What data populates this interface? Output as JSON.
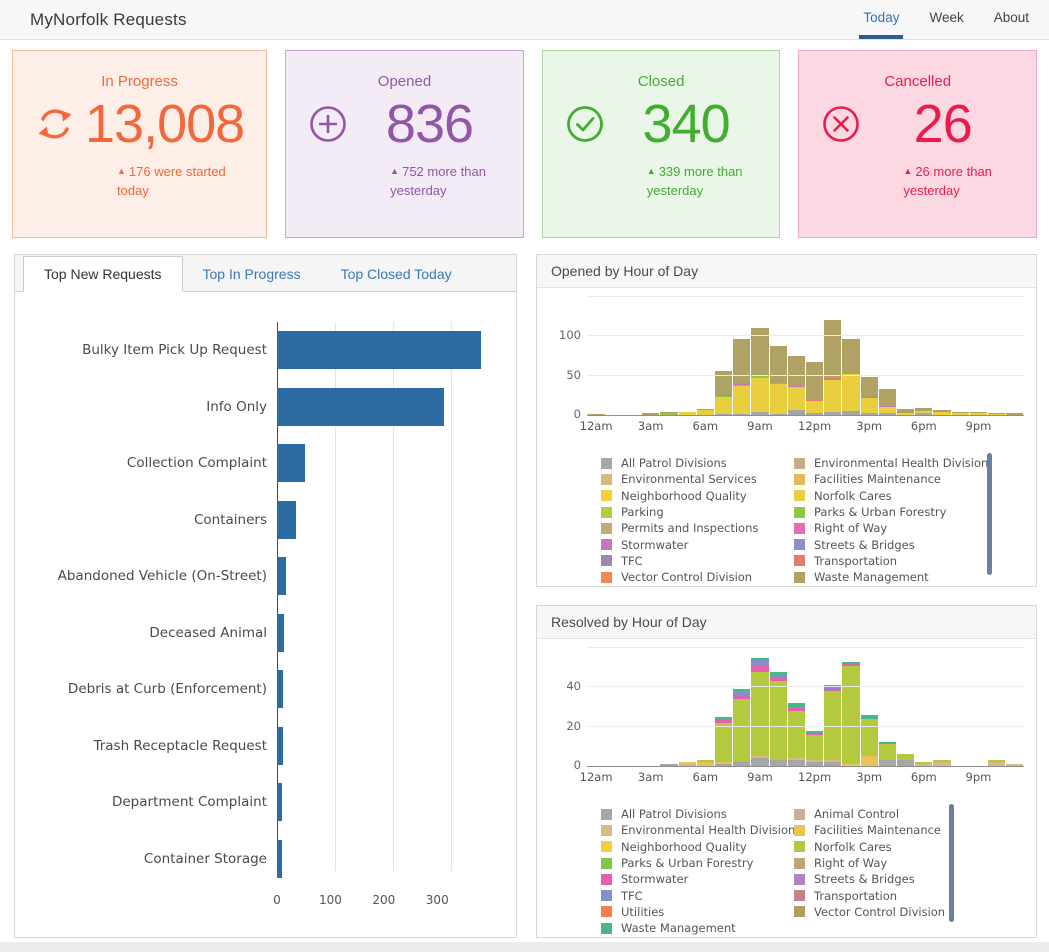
{
  "header": {
    "title": "MyNorfolk Requests",
    "nav": [
      {
        "label": "Today",
        "active": true
      },
      {
        "label": "Week",
        "active": false
      },
      {
        "label": "About",
        "active": false
      }
    ]
  },
  "cards": [
    {
      "title": "In Progress",
      "value": "13,008",
      "note_lines": [
        "176 were started today",
        ""
      ],
      "icon": "refresh-icon",
      "color": "#f2683c",
      "bg": "#fdeee7",
      "border": "#f6b89c"
    },
    {
      "title": "Opened",
      "value": "836",
      "note_lines": [
        "752 more than",
        "yesterday"
      ],
      "icon": "plus-circle-icon",
      "color": "#9355a8",
      "bg": "#f3ecf7",
      "border": "#cba3d8"
    },
    {
      "title": "Closed",
      "value": "340",
      "note_lines": [
        "339 more than",
        "yesterday"
      ],
      "icon": "check-circle-icon",
      "color": "#41ae2f",
      "bg": "#eaf6e7",
      "border": "#abd9a2"
    },
    {
      "title": "Cancelled",
      "value": "26",
      "note_lines": [
        "26 more than",
        "yesterday"
      ],
      "icon": "x-circle-icon",
      "color": "#ee1a4c",
      "bg": "#fcd9e2",
      "border": "#f5a6ba"
    }
  ],
  "left_panel": {
    "tabs": [
      {
        "label": "Top New Requests",
        "active": true
      },
      {
        "label": "Top In Progress",
        "active": false
      },
      {
        "label": "Top Closed Today",
        "active": false
      }
    ]
  },
  "opened_panel": {
    "title": "Opened by Hour of Day",
    "legend_left": [
      {
        "label": "All Patrol Divisions",
        "color": "#a6a6a6"
      },
      {
        "label": "Environmental Services",
        "color": "#d8b87c"
      },
      {
        "label": "Neighborhood Quality",
        "color": "#f2cf3b"
      },
      {
        "label": "Parking",
        "color": "#b8cc3f"
      },
      {
        "label": "Permits and Inspections",
        "color": "#c2a87b"
      },
      {
        "label": "Stormwater",
        "color": "#c678bb"
      },
      {
        "label": "TFC",
        "color": "#9c89ad"
      },
      {
        "label": "Vector Control Division",
        "color": "#ee8a52"
      }
    ],
    "legend_right": [
      {
        "label": "Environmental Health Division",
        "color": "#c9ab84"
      },
      {
        "label": "Facilities Maintenance",
        "color": "#e6b85c"
      },
      {
        "label": "Norfolk Cares",
        "color": "#e9cf3e"
      },
      {
        "label": "Parks & Urban Forestry",
        "color": "#8dc74b"
      },
      {
        "label": "Right of Way",
        "color": "#e46fb0"
      },
      {
        "label": "Streets & Bridges",
        "color": "#8f8fc1"
      },
      {
        "label": "Transportation",
        "color": "#df7e72"
      },
      {
        "label": "Waste Management",
        "color": "#b0a265"
      }
    ]
  },
  "resolved_panel": {
    "title": "Resolved by Hour of Day",
    "legend_left": [
      {
        "label": "All Patrol Divisions",
        "color": "#a6a6a6"
      },
      {
        "label": "Environmental Health Division",
        "color": "#d8b884"
      },
      {
        "label": "Neighborhood Quality",
        "color": "#f4cf3d"
      },
      {
        "label": "Parks & Urban Forestry",
        "color": "#82c748"
      },
      {
        "label": "Stormwater",
        "color": "#e561ae"
      },
      {
        "label": "TFC",
        "color": "#8292c8"
      },
      {
        "label": "Utilities",
        "color": "#f47e50"
      },
      {
        "label": "Waste Management",
        "color": "#49b68c"
      }
    ],
    "legend_right": [
      {
        "label": "Animal Control",
        "color": "#c9b091"
      },
      {
        "label": "Facilities Maintenance",
        "color": "#ecc257"
      },
      {
        "label": "Norfolk Cares",
        "color": "#b5c93e"
      },
      {
        "label": "Right of Way",
        "color": "#c2a478"
      },
      {
        "label": "Streets & Bridges",
        "color": "#ad84c6"
      },
      {
        "label": "Transportation",
        "color": "#c5828d"
      },
      {
        "label": "Vector Control Division",
        "color": "#b29a60"
      }
    ]
  },
  "chart_data": [
    {
      "id": "top-new-requests",
      "type": "bar",
      "orientation": "horizontal",
      "title": "Top New Requests",
      "categories": [
        "Bulky Item Pick Up Request",
        "Info Only",
        "Collection Complaint",
        "Containers",
        "Abandoned Vehicle (On-Street)",
        "Deceased Animal",
        "Debris at Curb (Enforcement)",
        "Trash Receptacle Request",
        "Department Complaint",
        "Container Storage"
      ],
      "values": [
        350,
        288,
        49,
        33,
        15,
        12,
        10,
        10,
        9,
        8
      ],
      "xlabel": "",
      "ylabel": "",
      "xticks": [
        0,
        100,
        200,
        300
      ],
      "xlim": [
        0,
        380
      ],
      "grid": true,
      "bar_color": "#2d6ca2"
    },
    {
      "id": "opened-by-hour",
      "type": "bar",
      "subtype": "stacked",
      "title": "Opened by Hour of Day",
      "x": [
        0,
        1,
        2,
        3,
        4,
        5,
        6,
        7,
        8,
        9,
        10,
        11,
        12,
        13,
        14,
        15,
        16,
        17,
        18,
        19,
        20,
        21,
        22,
        23
      ],
      "x_tick_hours": [
        0,
        3,
        6,
        9,
        12,
        15,
        18,
        21
      ],
      "x_tick_labels": [
        "12am",
        "3am",
        "6am",
        "9am",
        "12pm",
        "3pm",
        "6pm",
        "9pm"
      ],
      "ylim": [
        0,
        150
      ],
      "gridlines": [
        50,
        100,
        150
      ],
      "ytick_labels": [
        {
          "v": 0,
          "t": "0"
        },
        {
          "v": 50,
          "t": "50"
        },
        {
          "v": 100,
          "t": "100"
        }
      ],
      "legend_position": "bottom",
      "series": [
        {
          "name": "Waste Management",
          "color": "#b0a265",
          "values": [
            1,
            0,
            0,
            2,
            1,
            0,
            1,
            30,
            56,
            60,
            47,
            38,
            48,
            74,
            45,
            25,
            22,
            6,
            4,
            3,
            1,
            1,
            1,
            2
          ]
        },
        {
          "name": "Transportation",
          "color": "#df7e72",
          "values": [
            0,
            0,
            0,
            0,
            0,
            0,
            0,
            0,
            2,
            0,
            0,
            0,
            1,
            1,
            0,
            0,
            0,
            0,
            0,
            0,
            0,
            0,
            0,
            0
          ]
        },
        {
          "name": "Stormwater",
          "color": "#c678bb",
          "values": [
            0,
            0,
            0,
            0,
            0,
            0,
            0,
            1,
            1,
            1,
            0,
            1,
            0,
            1,
            0,
            1,
            1,
            0,
            0,
            0,
            0,
            0,
            0,
            0
          ]
        },
        {
          "name": "Parks & Urban Forestry",
          "color": "#8dc74b",
          "values": [
            0,
            0,
            0,
            0,
            2,
            0,
            0,
            2,
            1,
            2,
            2,
            0,
            0,
            0,
            0,
            0,
            0,
            0,
            0,
            0,
            0,
            0,
            0,
            0
          ]
        },
        {
          "name": "Norfolk Cares",
          "color": "#e9cf3e",
          "values": [
            0,
            0,
            0,
            0,
            0,
            4,
            6,
            21,
            35,
            43,
            38,
            30,
            16,
            40,
            47,
            19,
            7,
            2,
            3,
            4,
            2,
            3,
            1,
            0
          ]
        },
        {
          "name": "All Patrol Divisions",
          "color": "#a6a6a6",
          "values": [
            0,
            0,
            0,
            0,
            0,
            0,
            0,
            1,
            1,
            4,
            1,
            6,
            2,
            4,
            5,
            3,
            3,
            0,
            2,
            0,
            0,
            0,
            0,
            0
          ]
        }
      ]
    },
    {
      "id": "resolved-by-hour",
      "type": "bar",
      "subtype": "stacked",
      "title": "Resolved by Hour of Day",
      "x": [
        0,
        1,
        2,
        3,
        4,
        5,
        6,
        7,
        8,
        9,
        10,
        11,
        12,
        13,
        14,
        15,
        16,
        17,
        18,
        19,
        20,
        21,
        22,
        23
      ],
      "x_tick_hours": [
        0,
        3,
        6,
        9,
        12,
        15,
        18,
        21
      ],
      "x_tick_labels": [
        "12am",
        "3am",
        "6am",
        "9am",
        "12pm",
        "3pm",
        "6pm",
        "9pm"
      ],
      "ylim": [
        0,
        60
      ],
      "gridlines": [
        20,
        40,
        60
      ],
      "ytick_labels": [
        {
          "v": 0,
          "t": "0"
        },
        {
          "v": 20,
          "t": "20"
        },
        {
          "v": 40,
          "t": "40"
        }
      ],
      "legend_position": "bottom",
      "series": [
        {
          "name": "Waste Management",
          "color": "#49b68c",
          "values": [
            0,
            0,
            0,
            0,
            0,
            0,
            0,
            1,
            1,
            1,
            2,
            2,
            1,
            1,
            1,
            2,
            1,
            0,
            0,
            0,
            0,
            0,
            0,
            0
          ]
        },
        {
          "name": "TFC",
          "color": "#8292c8",
          "values": [
            0,
            0,
            0,
            0,
            0,
            0,
            0,
            0,
            2,
            3,
            1,
            0,
            0,
            1,
            0,
            0,
            0,
            0,
            0,
            0,
            0,
            0,
            0,
            0
          ]
        },
        {
          "name": "Stormwater",
          "color": "#e561ae",
          "values": [
            0,
            0,
            0,
            0,
            0,
            0,
            0,
            2,
            2,
            3,
            2,
            2,
            1,
            1,
            1,
            0,
            0,
            0,
            0,
            0,
            0,
            0,
            0,
            0
          ]
        },
        {
          "name": "Norfolk Cares",
          "color": "#b5c93e",
          "values": [
            0,
            0,
            0,
            0,
            0,
            0,
            1,
            20,
            32,
            43,
            40,
            24,
            13,
            35,
            50,
            19,
            8,
            3,
            1,
            1,
            0,
            0,
            1,
            0
          ]
        },
        {
          "name": "Facilities Maintenance",
          "color": "#ecc257",
          "values": [
            0,
            0,
            0,
            0,
            0,
            1,
            2,
            1,
            0,
            0,
            0,
            0,
            0,
            0,
            1,
            5,
            0,
            0,
            0,
            0,
            0,
            0,
            0,
            0
          ]
        },
        {
          "name": "Environmental Health Division",
          "color": "#d8b884",
          "values": [
            0,
            0,
            0,
            0,
            0,
            1,
            0,
            0,
            0,
            1,
            0,
            1,
            1,
            1,
            0,
            0,
            0,
            0,
            1,
            2,
            0,
            0,
            2,
            1
          ]
        },
        {
          "name": "All Patrol Divisions",
          "color": "#a6a6a6",
          "values": [
            0,
            0,
            0,
            0,
            1,
            0,
            0,
            1,
            2,
            4,
            3,
            3,
            2,
            2,
            0,
            0,
            3,
            3,
            0,
            0,
            0,
            0,
            0,
            0
          ]
        }
      ]
    }
  ]
}
